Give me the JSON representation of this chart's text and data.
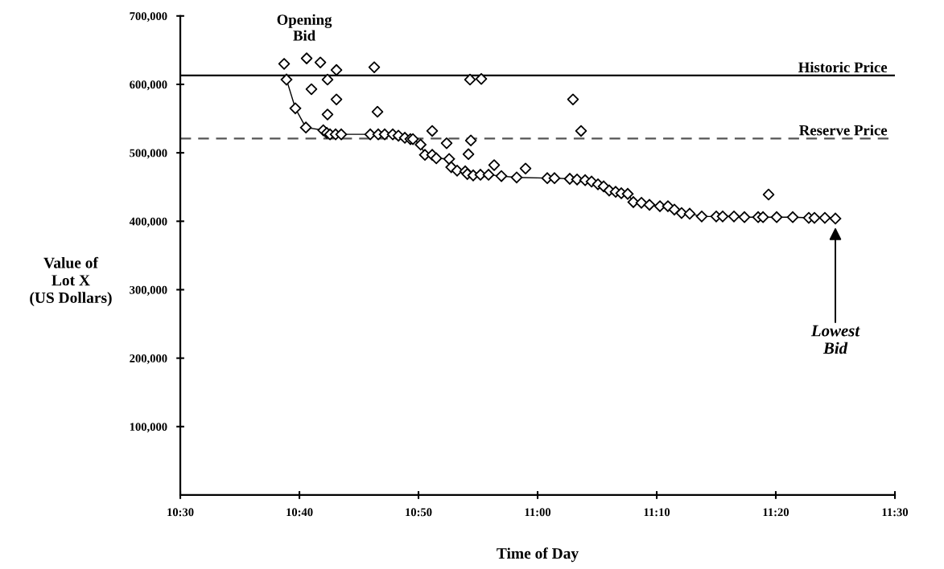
{
  "chart_data": {
    "type": "line",
    "xlabel": "Time of Day",
    "ylabel": "Value of\nLot X\n(US Dollars)",
    "xlim": [
      10.5,
      11.5
    ],
    "xticks": [
      {
        "value": 10.5,
        "label": "10:30"
      },
      {
        "value": 10.6667,
        "label": "10:40"
      },
      {
        "value": 10.8333,
        "label": "10:50"
      },
      {
        "value": 11.0,
        "label": "11:00"
      },
      {
        "value": 11.1667,
        "label": "11:10"
      },
      {
        "value": 11.3333,
        "label": "11:20"
      },
      {
        "value": 11.5,
        "label": "11:30"
      }
    ],
    "ylim": [
      0,
      700000
    ],
    "yticks": [
      {
        "value": 100000,
        "label": "100,000"
      },
      {
        "value": 200000,
        "label": "200,000"
      },
      {
        "value": 300000,
        "label": "300,000"
      },
      {
        "value": 400000,
        "label": "400,000"
      },
      {
        "value": 500000,
        "label": "500,000"
      },
      {
        "value": 600000,
        "label": "600,000"
      },
      {
        "value": 700000,
        "label": "700,000"
      }
    ],
    "grid": false,
    "marker": "diamond",
    "series": [
      {
        "color": "#000000",
        "x": [
          10.6486,
          10.661,
          10.6757,
          10.7001,
          10.705,
          10.7095,
          10.7173,
          10.7252,
          10.7658,
          10.777,
          10.786,
          10.7973,
          10.8052,
          10.8142,
          10.822,
          10.8255,
          10.8363,
          10.8423,
          10.8525,
          10.8582,
          10.8762,
          10.8792,
          10.8874,
          10.8987,
          10.9017,
          10.9099,
          10.92,
          10.9313,
          10.9493,
          10.9707,
          11.0135,
          11.0236,
          11.045,
          11.0552,
          11.0665,
          11.0755,
          11.0845,
          11.0924,
          11.1002,
          11.1092,
          11.1171,
          11.1261,
          11.134,
          11.1453,
          11.1565,
          11.1712,
          11.1824,
          11.1914,
          11.2015,
          11.2128,
          11.2297,
          11.25,
          11.259,
          11.2748,
          11.2894,
          11.3086,
          11.3154,
          11.3345,
          11.357,
          11.3795,
          11.3874,
          11.402,
          11.4167
        ],
        "values": [
          607000,
          565000,
          537000,
          533000,
          529000,
          527000,
          527000,
          527000,
          527000,
          527000,
          527000,
          527000,
          525000,
          522000,
          520000,
          520000,
          512000,
          497000,
          497000,
          492000,
          491000,
          479000,
          474000,
          473000,
          469000,
          467000,
          468000,
          468000,
          466000,
          464000,
          463000,
          463000,
          462000,
          461000,
          460000,
          458000,
          454000,
          451000,
          445000,
          443000,
          441000,
          440000,
          428000,
          427000,
          424000,
          422000,
          422000,
          417000,
          412000,
          411000,
          407000,
          407000,
          407000,
          407000,
          406000,
          406000,
          406000,
          406000,
          406000,
          405000,
          405000,
          405000,
          404000
        ]
      },
      {
        "type": "scatter",
        "color": "#000000",
        "x": [
          10.6453,
          10.6768,
          10.696,
          10.7185,
          10.706,
          10.6835,
          10.7185,
          10.706,
          10.7714,
          10.7759,
          10.9054,
          10.9212,
          10.8525,
          10.8727,
          10.9066,
          10.9032,
          10.9392,
          10.9831,
          11.0495,
          11.0608,
          11.3232
        ],
        "values": [
          630000,
          638000,
          632000,
          621000,
          607000,
          593000,
          578000,
          556000,
          625000,
          560000,
          607000,
          608000,
          532000,
          514000,
          518000,
          498000,
          482000,
          477000,
          578000,
          532000,
          439000
        ]
      }
    ],
    "ref_lines": [
      {
        "axis": "y",
        "value": 613000,
        "label": "Historic Price",
        "color": "#000000",
        "line_style": "solid"
      },
      {
        "axis": "y",
        "value": 521000,
        "label": "Reserve Price",
        "color": "#555555",
        "line_style": "dashed"
      }
    ],
    "annotations": [
      {
        "text": "Opening Bid",
        "x": 10.6453,
        "y": 630000
      },
      "Lowest Bid"
    ]
  }
}
